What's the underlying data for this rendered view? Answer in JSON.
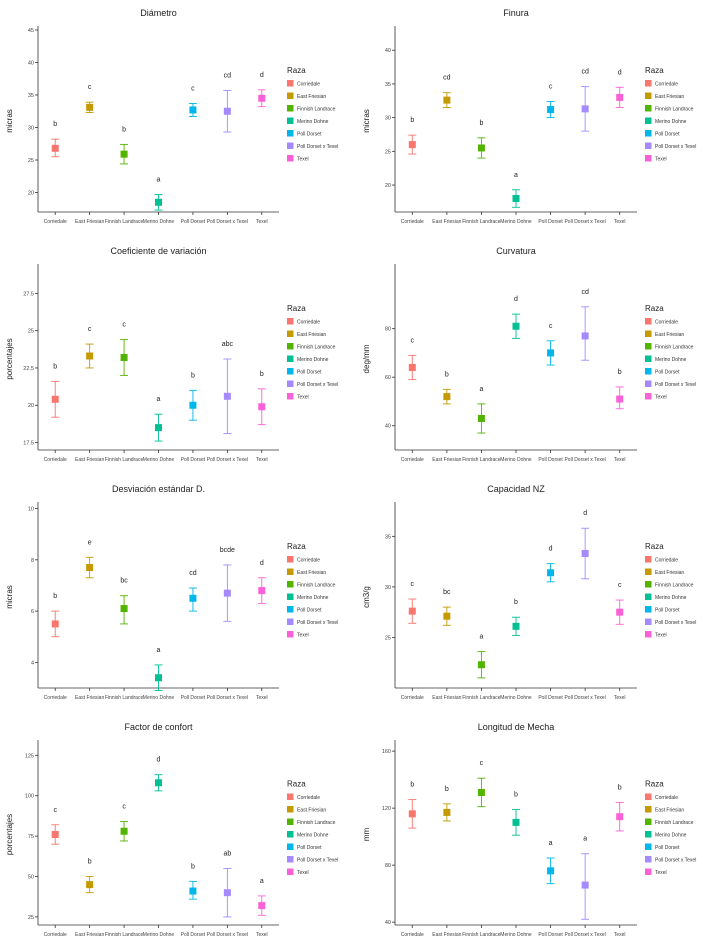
{
  "legend_title": "Raza",
  "breeds": [
    "Corriedale",
    "East Friesian",
    "Finnish Landrace",
    "Merino Dohne",
    "Poll Dorset",
    "Poll Dorset x Texel",
    "Texel"
  ],
  "colors": [
    "#F8766D",
    "#C49A00",
    "#53B400",
    "#00C094",
    "#00B6EB",
    "#A58AFF",
    "#FB61D7"
  ],
  "chart_data": [
    {
      "type": "scatter",
      "title": "Diámetro",
      "ylabel": "micras",
      "ylim": [
        17,
        45
      ],
      "yticks": [
        20,
        25,
        30,
        35,
        40,
        45
      ],
      "values": [
        26.8,
        33.1,
        25.9,
        18.5,
        32.7,
        32.5,
        34.5
      ],
      "lower": [
        25.5,
        32.3,
        24.4,
        17.3,
        31.7,
        29.3,
        33.2
      ],
      "upper": [
        28.2,
        33.9,
        27.4,
        19.7,
        33.7,
        35.7,
        35.8
      ],
      "letters": [
        "b",
        "c",
        "b",
        "a",
        "c",
        "cd",
        "d"
      ]
    },
    {
      "type": "scatter",
      "title": "Finura",
      "ylabel": "micras",
      "ylim": [
        16,
        43
      ],
      "yticks": [
        20,
        25,
        30,
        35,
        40
      ],
      "values": [
        26.0,
        32.6,
        25.5,
        18.0,
        31.2,
        31.3,
        33.0
      ],
      "lower": [
        24.6,
        31.5,
        24.0,
        16.7,
        30.0,
        28.0,
        31.5
      ],
      "upper": [
        27.4,
        33.7,
        27.0,
        19.3,
        32.4,
        34.6,
        34.5
      ],
      "letters": [
        "b",
        "cd",
        "b",
        "a",
        "c",
        "cd",
        "d"
      ]
    },
    {
      "type": "scatter",
      "title": "Coeficiente de variación",
      "ylabel": "porcentajes",
      "ylim": [
        17,
        29.2
      ],
      "yticks": [
        17.5,
        20,
        22.5,
        25,
        27.5
      ],
      "values": [
        20.4,
        23.3,
        23.2,
        18.5,
        20.0,
        20.6,
        19.9
      ],
      "lower": [
        19.2,
        22.5,
        22.0,
        17.6,
        19.0,
        18.1,
        18.7
      ],
      "upper": [
        21.6,
        24.1,
        24.4,
        19.4,
        21.0,
        23.1,
        21.1
      ],
      "letters": [
        "b",
        "c",
        "c",
        "a",
        "b",
        "abc",
        "b"
      ]
    },
    {
      "type": "scatter",
      "title": "Curvatura",
      "ylabel": "deg/mm",
      "ylim": [
        30,
        105
      ],
      "yticks": [
        40,
        60,
        80
      ],
      "values": [
        64,
        52,
        43,
        81,
        70,
        77,
        51
      ],
      "lower": [
        59,
        49,
        37,
        76,
        65,
        67,
        47
      ],
      "upper": [
        69,
        55,
        49,
        86,
        75,
        89,
        56
      ],
      "letters": [
        "c",
        "b",
        "a",
        "d",
        "c",
        "cd",
        "b"
      ]
    },
    {
      "type": "scatter",
      "title": "Desviación estándar D.",
      "ylabel": "micras",
      "ylim": [
        3,
        10.1
      ],
      "yticks": [
        4,
        6,
        8,
        10
      ],
      "values": [
        5.5,
        7.7,
        6.1,
        3.4,
        6.5,
        6.7,
        6.8
      ],
      "lower": [
        5.0,
        7.3,
        5.5,
        2.9,
        6.0,
        5.6,
        6.3
      ],
      "upper": [
        6.0,
        8.1,
        6.6,
        3.9,
        6.9,
        7.8,
        7.3
      ],
      "letters": [
        "b",
        "e",
        "bc",
        "a",
        "cd",
        "bcde",
        "d"
      ]
    },
    {
      "type": "scatter",
      "title": "Capacidad NZ",
      "ylabel": "cm3/g",
      "ylim": [
        20,
        38
      ],
      "yticks": [
        25,
        30,
        35
      ],
      "values": [
        27.6,
        27.1,
        22.3,
        26.1,
        31.4,
        33.3,
        27.5
      ],
      "lower": [
        26.4,
        26.2,
        21.0,
        25.2,
        30.5,
        30.8,
        26.3
      ],
      "upper": [
        28.8,
        28.0,
        23.6,
        27.0,
        32.3,
        35.8,
        28.7
      ],
      "letters": [
        "c",
        "bc",
        "a",
        "b",
        "d",
        "d",
        "c"
      ]
    },
    {
      "type": "scatter",
      "title": "Factor de confort",
      "ylabel": "porcentajes",
      "ylim": [
        20,
        132
      ],
      "yticks": [
        25,
        50,
        75,
        100,
        125
      ],
      "values": [
        76,
        45,
        78,
        108,
        41,
        40,
        32
      ],
      "lower": [
        70,
        40,
        72,
        103,
        36,
        25,
        26
      ],
      "upper": [
        82,
        50,
        84,
        113,
        47,
        55,
        38
      ],
      "letters": [
        "c",
        "b",
        "c",
        "d",
        "b",
        "ab",
        "a"
      ]
    },
    {
      "type": "scatter",
      "title": "Longitud de Mecha",
      "ylabel": "mm",
      "ylim": [
        38,
        165
      ],
      "yticks": [
        40,
        80,
        120,
        160
      ],
      "values": [
        116,
        117,
        131,
        110,
        76,
        66,
        114
      ],
      "lower": [
        106,
        111,
        121,
        101,
        67,
        42,
        104
      ],
      "upper": [
        126,
        123,
        141,
        119,
        85,
        88,
        124
      ],
      "letters": [
        "b",
        "b",
        "c",
        "b",
        "a",
        "a",
        "b"
      ]
    }
  ]
}
